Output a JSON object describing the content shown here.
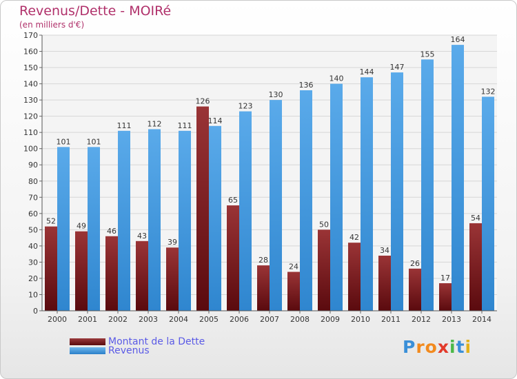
{
  "chart_data": {
    "type": "bar",
    "title": "Revenus/Dette - MOIRé",
    "subtitle": "(en milliers d'€)",
    "categories": [
      "2000",
      "2001",
      "2002",
      "2003",
      "2004",
      "2005",
      "2006",
      "2007",
      "2008",
      "2009",
      "2010",
      "2011",
      "2012",
      "2013",
      "2014"
    ],
    "series": [
      {
        "name": "Montant de la Dette",
        "color": "#7a1f22",
        "values": [
          52,
          49,
          46,
          43,
          39,
          126,
          65,
          28,
          24,
          50,
          42,
          34,
          26,
          17,
          54
        ]
      },
      {
        "name": "Revenus",
        "color": "#4a9fe0",
        "values": [
          101,
          101,
          111,
          112,
          111,
          114,
          123,
          130,
          136,
          140,
          144,
          147,
          155,
          164,
          132
        ]
      }
    ],
    "ylim": [
      0,
      170
    ],
    "ytick_step": 10,
    "grid": true,
    "legend_position": "bottom-left"
  },
  "logo": {
    "text": "Proxiti",
    "letters": [
      {
        "ch": "P",
        "color": "#3a8fd8"
      },
      {
        "ch": "r",
        "color": "#f28a1e"
      },
      {
        "ch": "o",
        "color": "#f28a1e"
      },
      {
        "ch": "x",
        "color": "#e23a2a"
      },
      {
        "ch": "i",
        "color": "#4bb848"
      },
      {
        "ch": "t",
        "color": "#3a8fd8"
      },
      {
        "ch": "i",
        "color": "#e2b21a"
      }
    ]
  }
}
